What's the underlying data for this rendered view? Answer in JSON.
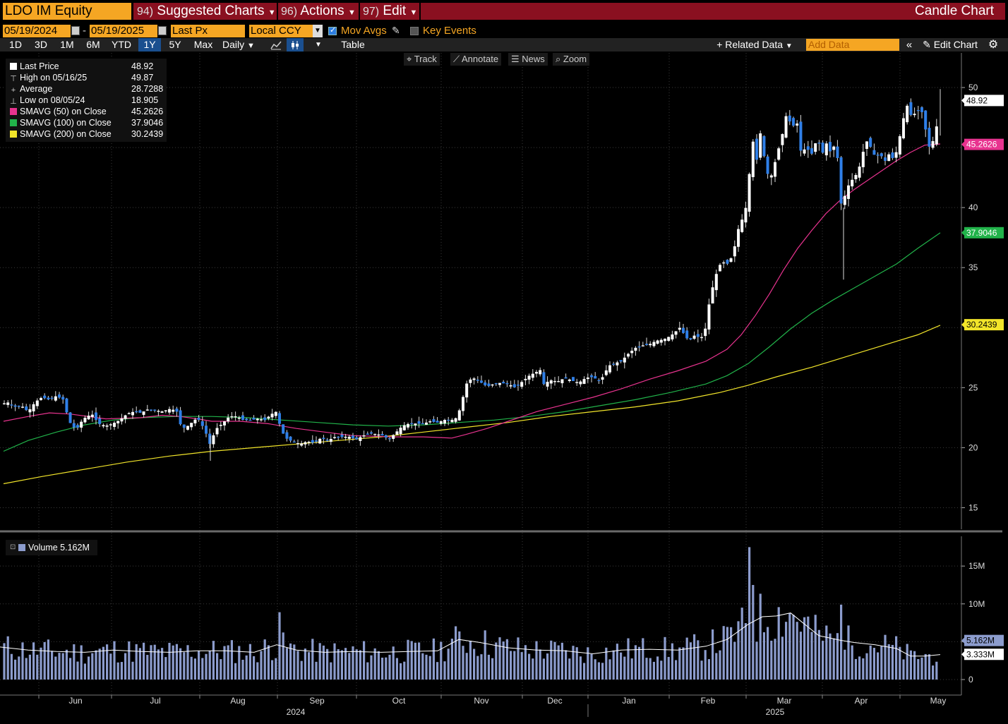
{
  "header": {
    "ticker": "LDO IM Equity",
    "menu": [
      {
        "num": "94)",
        "label": "Suggested Charts"
      },
      {
        "num": "96)",
        "label": "Actions"
      },
      {
        "num": "97)",
        "label": "Edit"
      }
    ],
    "title": "Candle Chart"
  },
  "controls": {
    "start_date": "05/19/2024",
    "end_date": "05/19/2025",
    "date_sep": "-",
    "field": "Last Px",
    "currency": "Local CCY",
    "mov_avgs": "Mov Avgs",
    "key_events": "Key Events"
  },
  "periods": [
    "1D",
    "3D",
    "1M",
    "6M",
    "YTD",
    "1Y",
    "5Y",
    "Max"
  ],
  "selected_period": "1Y",
  "frequency": "Daily",
  "table_label": "Table",
  "related_data": "Related Data",
  "add_data_placeholder": "Add Data",
  "edit_chart": "Edit Chart",
  "tools": [
    "Track",
    "Annotate",
    "News",
    "Zoom"
  ],
  "legend": [
    {
      "label": "Last Price",
      "value": "48.92",
      "color": "#ffffff"
    },
    {
      "label": "High on 05/16/25",
      "value": "49.87",
      "color": "none"
    },
    {
      "label": "Average",
      "value": "28.7288",
      "color": "none"
    },
    {
      "label": "Low on 08/05/24",
      "value": "18.905",
      "color": "none"
    },
    {
      "label": "SMAVG (50)  on Close",
      "value": "45.2626",
      "color": "#e8338f"
    },
    {
      "label": "SMAVG (100)  on Close",
      "value": "37.9046",
      "color": "#21b34a"
    },
    {
      "label": "SMAVG (200)  on Close",
      "value": "30.2439",
      "color": "#f2e52a"
    }
  ],
  "volume_legend": "Volume 5.162M",
  "chart_data": {
    "type": "candlestick",
    "y_axis": {
      "min": 13.5,
      "max": 52,
      "ticks": [
        15,
        20,
        25,
        35,
        40,
        50
      ]
    },
    "volume_axis": {
      "min": 0,
      "max": 18,
      "ticks": [
        {
          "v": 0,
          "label": "0"
        },
        {
          "v": 5,
          "label": "5M"
        },
        {
          "v": 10,
          "label": "10M"
        },
        {
          "v": 15,
          "label": "15M"
        }
      ]
    },
    "x_months": [
      "Jun",
      "Jul",
      "Aug",
      "Sep",
      "Oct",
      "Nov",
      "Dec",
      "Jan",
      "Feb",
      "Mar",
      "Apr",
      "May"
    ],
    "x_years": [
      "2024",
      "2025"
    ],
    "price_path": [
      [
        0,
        23.5
      ],
      [
        10,
        23.8
      ],
      [
        20,
        23.4
      ],
      [
        30,
        23.5
      ],
      [
        40,
        23.0
      ],
      [
        50,
        23.8
      ],
      [
        60,
        24.2
      ],
      [
        70,
        24.0
      ],
      [
        80,
        24.3
      ],
      [
        90,
        24.0
      ],
      [
        95,
        22.8
      ],
      [
        100,
        22.0
      ],
      [
        108,
        21.5
      ],
      [
        118,
        22.4
      ],
      [
        130,
        22.8
      ],
      [
        140,
        22.0
      ],
      [
        150,
        21.8
      ],
      [
        160,
        22.0
      ],
      [
        170,
        22.3
      ],
      [
        180,
        22.8
      ],
      [
        190,
        23.0
      ],
      [
        200,
        22.9
      ],
      [
        210,
        23.2
      ],
      [
        220,
        23.1
      ],
      [
        230,
        23.0
      ],
      [
        240,
        23.2
      ],
      [
        250,
        23.1
      ],
      [
        255,
        22.0
      ],
      [
        262,
        21.6
      ],
      [
        270,
        22.0
      ],
      [
        280,
        22.5
      ],
      [
        290,
        21.5
      ],
      [
        298,
        20.2
      ],
      [
        305,
        21.5
      ],
      [
        315,
        22.0
      ],
      [
        325,
        22.6
      ],
      [
        335,
        22.6
      ],
      [
        345,
        22.3
      ],
      [
        355,
        22.3
      ],
      [
        365,
        22.4
      ],
      [
        375,
        22.3
      ],
      [
        385,
        22.8
      ],
      [
        392,
        23.0
      ],
      [
        398,
        21.5
      ],
      [
        405,
        20.8
      ],
      [
        415,
        20.5
      ],
      [
        425,
        20.3
      ],
      [
        435,
        20.5
      ],
      [
        445,
        20.4
      ],
      [
        455,
        20.8
      ],
      [
        465,
        20.6
      ],
      [
        475,
        20.9
      ],
      [
        485,
        20.9
      ],
      [
        495,
        20.9
      ],
      [
        505,
        20.7
      ],
      [
        515,
        21.0
      ],
      [
        525,
        21.2
      ],
      [
        535,
        21.1
      ],
      [
        545,
        21.0
      ],
      [
        550,
        20.6
      ],
      [
        560,
        21.2
      ],
      [
        570,
        21.8
      ],
      [
        580,
        22.0
      ],
      [
        590,
        22.0
      ],
      [
        600,
        22.0
      ],
      [
        610,
        22.2
      ],
      [
        620,
        22.1
      ],
      [
        630,
        22.3
      ],
      [
        640,
        22.3
      ],
      [
        648,
        22.5
      ],
      [
        655,
        24.0
      ],
      [
        662,
        25.5
      ],
      [
        670,
        25.8
      ],
      [
        680,
        25.5
      ],
      [
        690,
        25.1
      ],
      [
        700,
        25.3
      ],
      [
        710,
        25.4
      ],
      [
        720,
        25.3
      ],
      [
        730,
        25.0
      ],
      [
        740,
        25.5
      ],
      [
        750,
        26.0
      ],
      [
        760,
        26.3
      ],
      [
        765,
        26.5
      ],
      [
        770,
        25.3
      ],
      [
        780,
        25.6
      ],
      [
        790,
        25.5
      ],
      [
        800,
        25.8
      ],
      [
        810,
        25.6
      ],
      [
        820,
        25.4
      ],
      [
        830,
        25.8
      ],
      [
        840,
        25.9
      ],
      [
        850,
        25.5
      ],
      [
        856,
        26.1
      ],
      [
        862,
        26.8
      ],
      [
        870,
        27.0
      ],
      [
        880,
        27.2
      ],
      [
        890,
        27.8
      ],
      [
        900,
        28.3
      ],
      [
        910,
        28.5
      ],
      [
        920,
        28.6
      ],
      [
        930,
        28.9
      ],
      [
        940,
        29.0
      ],
      [
        950,
        29.3
      ],
      [
        960,
        29.8
      ],
      [
        965,
        30.1
      ],
      [
        970,
        29.2
      ],
      [
        978,
        29.0
      ],
      [
        985,
        29.4
      ],
      [
        992,
        29.1
      ],
      [
        998,
        29.4
      ],
      [
        1003,
        31.5
      ],
      [
        1008,
        33.0
      ],
      [
        1015,
        34.5
      ],
      [
        1022,
        35.5
      ],
      [
        1030,
        35.3
      ],
      [
        1036,
        35.8
      ],
      [
        1042,
        37.0
      ],
      [
        1048,
        38.8
      ],
      [
        1055,
        39.2
      ],
      [
        1062,
        43.0
      ],
      [
        1068,
        46.1
      ],
      [
        1072,
        44.0
      ],
      [
        1078,
        46.5
      ],
      [
        1085,
        43.0
      ],
      [
        1092,
        42.5
      ],
      [
        1100,
        44.2
      ],
      [
        1108,
        46.0
      ],
      [
        1115,
        48.0
      ],
      [
        1122,
        46.5
      ],
      [
        1128,
        47.5
      ],
      [
        1135,
        44.5
      ],
      [
        1142,
        45.0
      ],
      [
        1150,
        44.5
      ],
      [
        1158,
        45.8
      ],
      [
        1165,
        44.5
      ],
      [
        1172,
        45.5
      ],
      [
        1178,
        44.3
      ],
      [
        1183,
        45.5
      ],
      [
        1188,
        43.5
      ],
      [
        1192,
        40.0
      ],
      [
        1197,
        41.0
      ],
      [
        1203,
        42.0
      ],
      [
        1210,
        42.5
      ],
      [
        1216,
        43.0
      ],
      [
        1222,
        44.5
      ],
      [
        1228,
        45.5
      ],
      [
        1234,
        45.0
      ],
      [
        1240,
        44.2
      ],
      [
        1247,
        44.5
      ],
      [
        1253,
        43.8
      ],
      [
        1260,
        44.5
      ],
      [
        1266,
        44.0
      ],
      [
        1272,
        45.0
      ],
      [
        1278,
        47.0
      ],
      [
        1285,
        48.5
      ],
      [
        1292,
        47.5
      ],
      [
        1298,
        48.0
      ],
      [
        1305,
        48.2
      ],
      [
        1310,
        47.0
      ],
      [
        1315,
        45.0
      ],
      [
        1320,
        45.3
      ],
      [
        1325,
        46.0
      ],
      [
        1332,
        48.9
      ]
    ],
    "sma50_path": [
      [
        5,
        22.2
      ],
      [
        40,
        22.6
      ],
      [
        70,
        22.9
      ],
      [
        100,
        22.8
      ],
      [
        150,
        22.4
      ],
      [
        200,
        22.5
      ],
      [
        230,
        22.7
      ],
      [
        255,
        22.6
      ],
      [
        280,
        22.4
      ],
      [
        300,
        22.2
      ],
      [
        340,
        22.2
      ],
      [
        380,
        22.0
      ],
      [
        420,
        21.6
      ],
      [
        460,
        21.3
      ],
      [
        500,
        21.0
      ],
      [
        560,
        20.9
      ],
      [
        600,
        20.9
      ],
      [
        640,
        20.8
      ],
      [
        660,
        21.1
      ],
      [
        690,
        21.6
      ],
      [
        720,
        22.2
      ],
      [
        760,
        23.0
      ],
      [
        800,
        23.6
      ],
      [
        840,
        24.2
      ],
      [
        880,
        24.9
      ],
      [
        920,
        25.7
      ],
      [
        960,
        26.4
      ],
      [
        1000,
        27.2
      ],
      [
        1030,
        28.2
      ],
      [
        1050,
        29.4
      ],
      [
        1070,
        31.0
      ],
      [
        1090,
        32.8
      ],
      [
        1110,
        34.8
      ],
      [
        1130,
        36.6
      ],
      [
        1150,
        38.1
      ],
      [
        1170,
        39.5
      ],
      [
        1190,
        40.6
      ],
      [
        1210,
        41.5
      ],
      [
        1230,
        42.3
      ],
      [
        1250,
        43.1
      ],
      [
        1270,
        43.9
      ],
      [
        1290,
        44.6
      ],
      [
        1310,
        45.2
      ],
      [
        1332,
        45.3
      ]
    ],
    "sma100_path": [
      [
        5,
        19.7
      ],
      [
        40,
        20.6
      ],
      [
        80,
        21.3
      ],
      [
        120,
        21.9
      ],
      [
        160,
        22.3
      ],
      [
        200,
        22.5
      ],
      [
        250,
        22.6
      ],
      [
        300,
        22.6
      ],
      [
        350,
        22.5
      ],
      [
        400,
        22.3
      ],
      [
        450,
        22.1
      ],
      [
        500,
        21.9
      ],
      [
        550,
        21.8
      ],
      [
        600,
        21.9
      ],
      [
        650,
        22.1
      ],
      [
        700,
        22.3
      ],
      [
        750,
        22.6
      ],
      [
        800,
        23.0
      ],
      [
        850,
        23.5
      ],
      [
        900,
        24.0
      ],
      [
        950,
        24.6
      ],
      [
        1000,
        25.3
      ],
      [
        1030,
        26.0
      ],
      [
        1060,
        27.0
      ],
      [
        1090,
        28.4
      ],
      [
        1120,
        29.9
      ],
      [
        1150,
        31.2
      ],
      [
        1180,
        32.3
      ],
      [
        1210,
        33.3
      ],
      [
        1240,
        34.3
      ],
      [
        1270,
        35.3
      ],
      [
        1300,
        36.6
      ],
      [
        1332,
        37.9
      ]
    ],
    "sma200_path": [
      [
        5,
        17.0
      ],
      [
        60,
        17.6
      ],
      [
        120,
        18.2
      ],
      [
        180,
        18.8
      ],
      [
        240,
        19.3
      ],
      [
        300,
        19.7
      ],
      [
        360,
        20.0
      ],
      [
        420,
        20.3
      ],
      [
        480,
        20.6
      ],
      [
        540,
        20.9
      ],
      [
        600,
        21.3
      ],
      [
        660,
        21.7
      ],
      [
        720,
        22.1
      ],
      [
        780,
        22.6
      ],
      [
        840,
        23.0
      ],
      [
        900,
        23.4
      ],
      [
        960,
        23.9
      ],
      [
        1020,
        24.6
      ],
      [
        1060,
        25.2
      ],
      [
        1100,
        25.9
      ],
      [
        1150,
        26.7
      ],
      [
        1200,
        27.6
      ],
      [
        1250,
        28.5
      ],
      [
        1300,
        29.4
      ],
      [
        1332,
        30.2
      ]
    ],
    "volume_path": [
      [
        0,
        4.3
      ],
      [
        40,
        3.9
      ],
      [
        80,
        3.7
      ],
      [
        120,
        3.6
      ],
      [
        160,
        3.9
      ],
      [
        200,
        3.7
      ],
      [
        240,
        3.6
      ],
      [
        280,
        3.8
      ],
      [
        320,
        3.8
      ],
      [
        360,
        3.6
      ],
      [
        392,
        4.6
      ],
      [
        420,
        3.9
      ],
      [
        460,
        3.6
      ],
      [
        500,
        3.7
      ],
      [
        540,
        3.6
      ],
      [
        580,
        3.7
      ],
      [
        620,
        3.8
      ],
      [
        650,
        5.3
      ],
      [
        680,
        4.9
      ],
      [
        720,
        4.2
      ],
      [
        760,
        3.9
      ],
      [
        800,
        3.8
      ],
      [
        840,
        3.4
      ],
      [
        880,
        3.9
      ],
      [
        920,
        4.0
      ],
      [
        960,
        3.9
      ],
      [
        1000,
        4.4
      ],
      [
        1030,
        5.3
      ],
      [
        1060,
        7.3
      ],
      [
        1080,
        8.3
      ],
      [
        1100,
        8.4
      ],
      [
        1120,
        8.8
      ],
      [
        1140,
        7.3
      ],
      [
        1160,
        5.8
      ],
      [
        1190,
        5.2
      ],
      [
        1210,
        4.9
      ],
      [
        1240,
        4.6
      ],
      [
        1270,
        4.1
      ],
      [
        1290,
        3.1
      ],
      [
        1310,
        3.1
      ],
      [
        1332,
        3.3
      ]
    ],
    "labels": {
      "last": "48.92",
      "sma50": "45.2626",
      "sma100": "37.9046",
      "sma200": "30.2439",
      "vol_last": "5.162M",
      "vol_avg": "3.333M"
    }
  }
}
